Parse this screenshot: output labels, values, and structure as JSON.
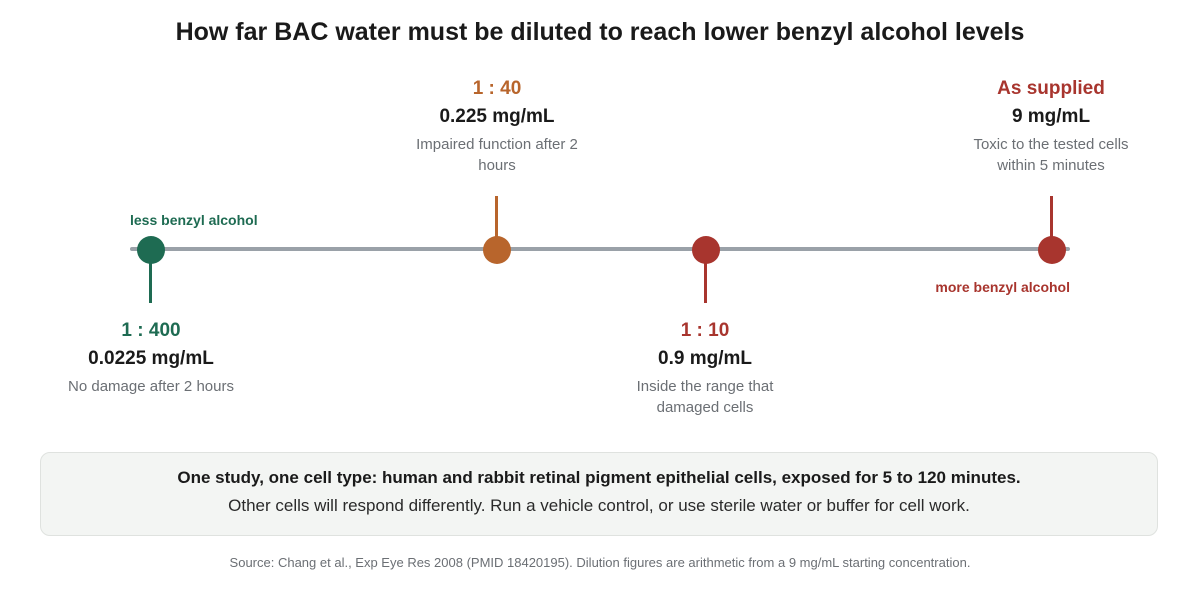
{
  "title": "How far BAC water must be diluted to reach lower benzyl alcohol levels",
  "colors": {
    "green": "#1e6b52",
    "orange": "#b8652c",
    "red": "#a8352e",
    "axis": "#9aa1a8"
  },
  "axis": {
    "left_label": "less benzyl alcohol",
    "right_label": "more benzyl alcohol"
  },
  "points": [
    {
      "ratio": "1 : 400",
      "concentration": "0.0225 mg/mL",
      "description": "No damage after 2 hours"
    },
    {
      "ratio": "1 : 40",
      "concentration": "0.225 mg/mL",
      "description": "Impaired function after 2 hours"
    },
    {
      "ratio": "1 : 10",
      "concentration": "0.9 mg/mL",
      "description": "Inside the range that damaged cells"
    },
    {
      "ratio": "As supplied",
      "concentration": "9 mg/mL",
      "description": "Toxic to the tested cells within 5 minutes"
    }
  ],
  "note": {
    "line1": "One study, one cell type: human and rabbit retinal pigment epithelial cells, exposed for 5 to 120 minutes.",
    "line2": "Other cells will respond differently. Run a vehicle control, or use sterile water or buffer for cell work."
  },
  "source": "Source: Chang et al., Exp Eye Res 2008 (PMID 18420195). Dilution figures are arithmetic from a 9 mg/mL starting concentration."
}
